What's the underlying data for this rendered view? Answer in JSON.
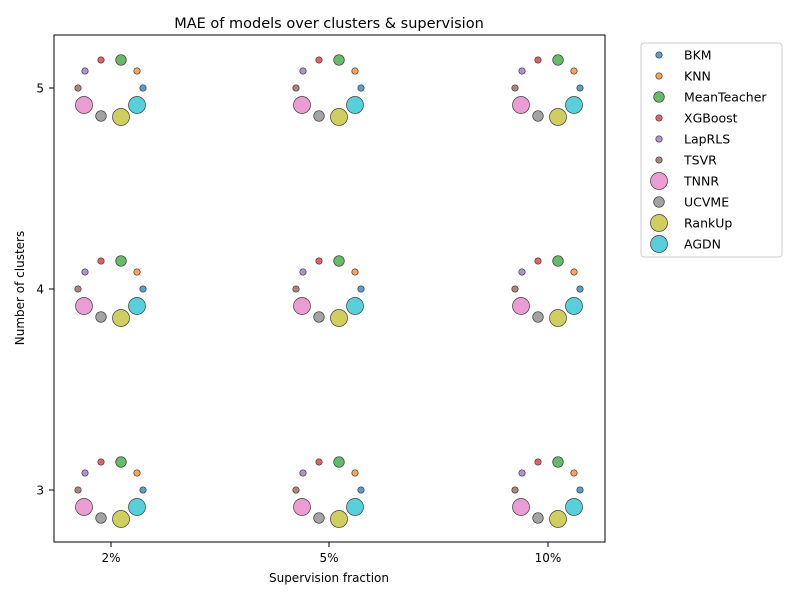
{
  "chart_data": {
    "type": "scatter",
    "title": "MAE of models over clusters & supervision",
    "xlabel": "Supervision fraction",
    "ylabel": "Number of clusters",
    "x_categories": [
      "2%",
      "5%",
      "10%"
    ],
    "y_categories": [
      "3",
      "4",
      "5"
    ],
    "legend_position": "outside-right",
    "grid": false,
    "series": [
      {
        "name": "BKM",
        "color": "#1f77b4",
        "marker_size": "small"
      },
      {
        "name": "KNN",
        "color": "#ff7f0e",
        "marker_size": "small"
      },
      {
        "name": "MeanTeacher",
        "color": "#2ca02c",
        "marker_size": "medium"
      },
      {
        "name": "XGBoost",
        "color": "#d62728",
        "marker_size": "small"
      },
      {
        "name": "LapRLS",
        "color": "#9467bd",
        "marker_size": "small"
      },
      {
        "name": "TSVR",
        "color": "#8c564b",
        "marker_size": "small"
      },
      {
        "name": "TNNR",
        "color": "#e377c2",
        "marker_size": "large"
      },
      {
        "name": "UCVME",
        "color": "#7f7f7f",
        "marker_size": "medium"
      },
      {
        "name": "RankUp",
        "color": "#bcbd22",
        "marker_size": "large"
      },
      {
        "name": "AGDN",
        "color": "#17becf",
        "marker_size": "large"
      }
    ]
  }
}
